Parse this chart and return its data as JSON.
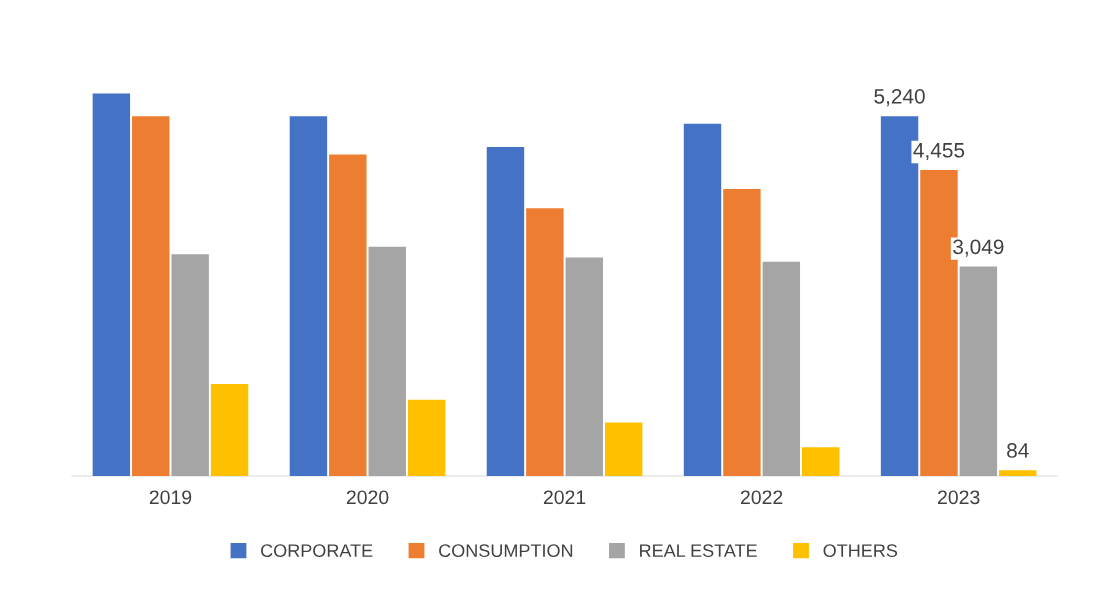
{
  "chart_data": {
    "type": "bar",
    "legend": "bottom",
    "categories": [
      "2019",
      "2020",
      "2021",
      "2022",
      "2023"
    ],
    "series": [
      {
        "name": "CORPORATE",
        "color": "#4472c4",
        "values": [
          5570,
          5240,
          4790,
          5130,
          5240
        ],
        "value_labels": [
          null,
          null,
          null,
          null,
          "5,240"
        ]
      },
      {
        "name": "CONSUMPTION",
        "color": "#ed7d31",
        "values": [
          5240,
          4680,
          3900,
          4180,
          4455
        ],
        "value_labels": [
          null,
          null,
          null,
          null,
          "4,455"
        ]
      },
      {
        "name": "REAL ESTATE",
        "color": "#a5a5a5",
        "values": [
          3230,
          3340,
          3180,
          3120,
          3049
        ],
        "value_labels": [
          null,
          null,
          null,
          null,
          "3,049"
        ]
      },
      {
        "name": "OTHERS",
        "color": "#ffc000",
        "values": [
          1340,
          1110,
          780,
          420,
          84
        ],
        "value_labels": [
          null,
          null,
          null,
          null,
          "84"
        ]
      }
    ]
  }
}
